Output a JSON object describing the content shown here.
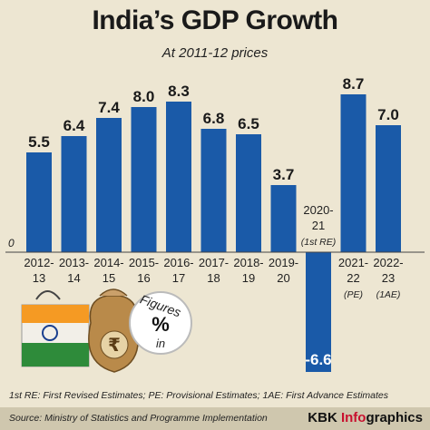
{
  "header": {
    "title": "India’s GDP Growth",
    "subtitle": "At 2011-12 prices"
  },
  "chart_data": {
    "type": "bar",
    "title": "India’s GDP Growth",
    "subtitle": "At 2011-12 prices",
    "xlabel": "",
    "ylabel": "",
    "categories": [
      [
        "2012-",
        "13"
      ],
      [
        "2013-",
        "14"
      ],
      [
        "2014-",
        "15"
      ],
      [
        "2015-",
        "16"
      ],
      [
        "2016-",
        "17"
      ],
      [
        "2017-",
        "18"
      ],
      [
        "2018-",
        "19"
      ],
      [
        "2019-",
        "20"
      ],
      [
        "2020-",
        "21",
        "(1st RE)"
      ],
      [
        "2021-",
        "22",
        "(PE)"
      ],
      [
        "2022-",
        "23",
        "(1AE)"
      ]
    ],
    "values": [
      5.5,
      6.4,
      7.4,
      8.0,
      8.3,
      6.8,
      6.5,
      3.7,
      -6.6,
      8.7,
      7.0
    ],
    "value_labels": [
      "5.5",
      "6.4",
      "7.4",
      "8.0",
      "8.3",
      "6.8",
      "6.5",
      "3.7",
      "-6.6",
      "8.7",
      "7.0"
    ],
    "zero_label": "0",
    "ylim": [
      -8,
      9.5
    ],
    "grid": false,
    "bar_color": "#1a5aa8"
  },
  "badge": {
    "top": "Figures",
    "symbol": "%",
    "bottom": "in",
    "rupee": "₹"
  },
  "footer": {
    "note": "1st RE: First Revised Estimates; PE: Provisional Estimates; 1AE: First Advance Estimates",
    "source": "Source: Ministry of Statistics and Programme Implementation",
    "credit_prefix": "KBK ",
    "credit_accent": "Info",
    "credit_suffix": "graphics"
  }
}
